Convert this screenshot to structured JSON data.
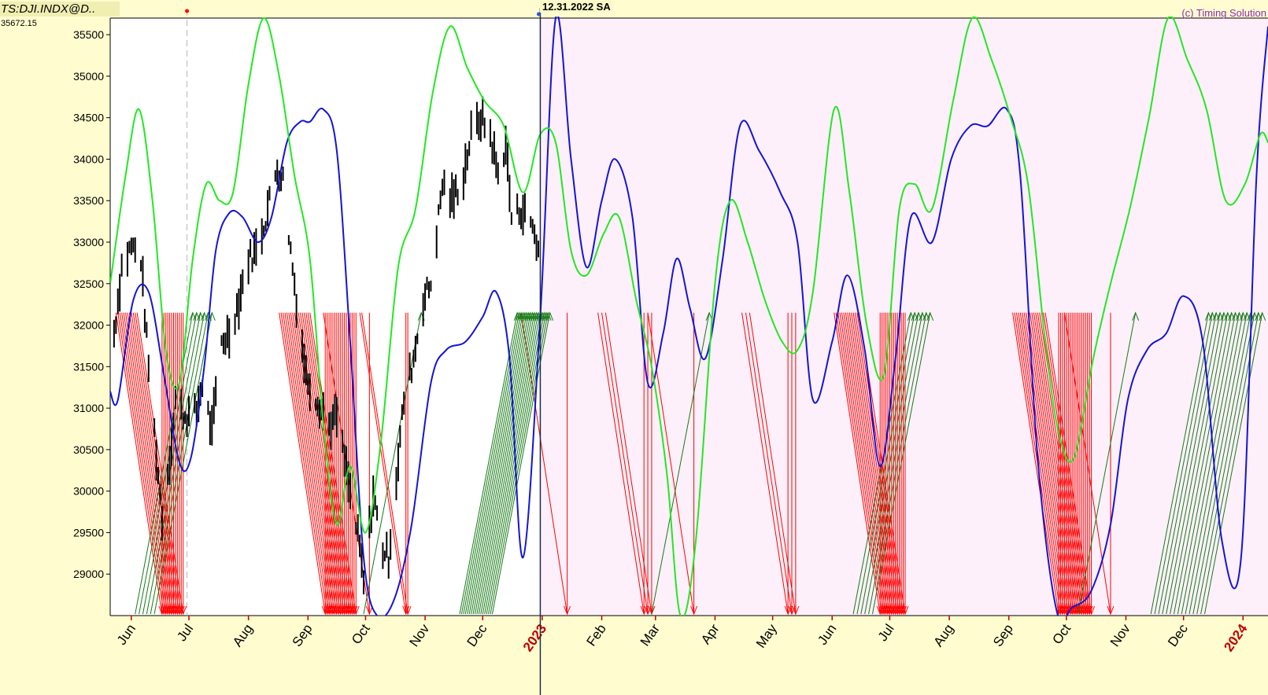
{
  "header": {
    "symbol": "TS:DJI.INDX@D..",
    "last_value": "35672.15",
    "cursor_date": "12.31.2022 SA",
    "credit": "(c) Timing Solution"
  },
  "colors": {
    "background": "#fffdcf",
    "plot_history": "#ffffff",
    "plot_forecast": "#fdf0fa",
    "price": "#000000",
    "blue_line": "#1414d8",
    "green_line": "#22e822",
    "red_arrows": "#ff0000",
    "green_arrows": "#167a16",
    "year_label": "#c00000"
  },
  "chart_data": {
    "type": "line",
    "ylim": [
      28500,
      35700
    ],
    "y_ticks": [
      29000,
      29500,
      30000,
      30500,
      31000,
      31500,
      32000,
      32500,
      33000,
      33500,
      34000,
      34500,
      35000,
      35500
    ],
    "x_labels": [
      "Jun",
      "Jul",
      "Aug",
      "Sep",
      "Oct",
      "Nov",
      "Dec",
      "2023",
      "Feb",
      "Mar",
      "Apr",
      "May",
      "Jun",
      "Jul",
      "Aug",
      "Sep",
      "Oct",
      "Nov",
      "Dec",
      "2024"
    ],
    "x_label_is_year": [
      false,
      false,
      false,
      false,
      false,
      false,
      false,
      true,
      false,
      false,
      false,
      false,
      false,
      false,
      false,
      false,
      false,
      false,
      false,
      true
    ],
    "x_label_dates": [
      "2022-06-01",
      "2022-07-01",
      "2022-08-01",
      "2022-09-01",
      "2022-10-01",
      "2022-11-01",
      "2022-12-01",
      "2023-01-01",
      "2023-02-01",
      "2023-03-01",
      "2023-04-01",
      "2023-05-01",
      "2023-06-01",
      "2023-07-01",
      "2023-08-01",
      "2023-09-01",
      "2023-10-01",
      "2023-11-01",
      "2023-12-01",
      "2024-01-01"
    ],
    "x_range": [
      "2022-05-21",
      "2024-01-14"
    ],
    "forecast_start": "2022-12-31",
    "cursor_marker": "2022-06-30",
    "price_series": {
      "name": "",
      "dates": [
        "2022-05-23",
        "2022-05-27",
        "2022-06-01",
        "2022-06-06",
        "2022-06-10",
        "2022-06-15",
        "2022-06-17",
        "2022-06-22",
        "2022-06-24",
        "2022-06-29",
        "2022-07-05",
        "2022-07-08",
        "2022-07-13",
        "2022-07-18",
        "2022-07-22",
        "2022-07-27",
        "2022-08-01",
        "2022-08-05",
        "2022-08-10",
        "2022-08-16",
        "2022-08-19",
        "2022-08-23",
        "2022-08-26",
        "2022-08-31",
        "2022-09-06",
        "2022-09-12",
        "2022-09-16",
        "2022-09-22",
        "2022-09-28",
        "2022-09-30",
        "2022-10-05",
        "2022-10-10",
        "2022-10-13",
        "2022-10-18",
        "2022-10-21",
        "2022-10-26",
        "2022-10-31",
        "2022-11-04",
        "2022-11-10",
        "2022-11-15",
        "2022-11-21",
        "2022-11-25",
        "2022-11-30",
        "2022-12-05",
        "2022-12-09",
        "2022-12-13",
        "2022-12-16",
        "2022-12-21",
        "2022-12-27",
        "2022-12-30"
      ],
      "values": [
        31900,
        32700,
        32950,
        32800,
        31500,
        30200,
        29700,
        30600,
        31100,
        30900,
        30950,
        31300,
        30700,
        31800,
        31900,
        32300,
        32800,
        32900,
        33300,
        33900,
        33750,
        32900,
        32300,
        31400,
        31100,
        30800,
        30900,
        30100,
        29300,
        28900,
        29950,
        29300,
        29200,
        30400,
        31100,
        31600,
        32300,
        32500,
        33700,
        33500,
        33800,
        34300,
        34500,
        34300,
        33800,
        34200,
        33300,
        33400,
        33200,
        32900
      ]
    },
    "series": [
      {
        "name": "",
        "color": "#1414d8",
        "dates": [
          "2022-05-21",
          "2022-05-25",
          "2022-06-02",
          "2022-06-10",
          "2022-06-18",
          "2022-06-26",
          "2022-07-02",
          "2022-07-09",
          "2022-07-15",
          "2022-07-22",
          "2022-07-29",
          "2022-08-06",
          "2022-08-13",
          "2022-08-21",
          "2022-08-28",
          "2022-09-02",
          "2022-09-09",
          "2022-09-16",
          "2022-09-23",
          "2022-09-30",
          "2022-10-07",
          "2022-10-16",
          "2022-10-25",
          "2022-11-04",
          "2022-11-12",
          "2022-11-22",
          "2022-12-01",
          "2022-12-08",
          "2022-12-15",
          "2022-12-22",
          "2022-12-31",
          "2023-01-08",
          "2023-01-16",
          "2023-01-24",
          "2023-02-01",
          "2023-02-08",
          "2023-02-17",
          "2023-02-25",
          "2023-03-05",
          "2023-03-12",
          "2023-03-19",
          "2023-03-27",
          "2023-04-05",
          "2023-04-14",
          "2023-04-24",
          "2023-05-05",
          "2023-05-14",
          "2023-05-22",
          "2023-06-01",
          "2023-06-09",
          "2023-06-18",
          "2023-06-26",
          "2023-07-04",
          "2023-07-12",
          "2023-07-23",
          "2023-08-02",
          "2023-08-12",
          "2023-08-21",
          "2023-08-31",
          "2023-09-07",
          "2023-09-16",
          "2023-09-26",
          "2023-10-04",
          "2023-10-14",
          "2023-10-24",
          "2023-11-02",
          "2023-11-12",
          "2023-11-22",
          "2023-12-01",
          "2023-12-11",
          "2023-12-21",
          "2023-12-31",
          "2024-01-08",
          "2024-01-14"
        ],
        "values": [
          31200,
          31100,
          32300,
          32400,
          31400,
          30350,
          30400,
          31500,
          32900,
          33350,
          33300,
          33000,
          33300,
          34200,
          34450,
          34450,
          34600,
          34100,
          31800,
          29200,
          28500,
          28700,
          29600,
          31300,
          31700,
          31800,
          32100,
          32400,
          31600,
          29200,
          32100,
          35700,
          34000,
          32700,
          33500,
          34000,
          33300,
          31300,
          31900,
          32800,
          32200,
          31600,
          32800,
          34400,
          34100,
          33600,
          33000,
          31100,
          31800,
          32600,
          31700,
          30300,
          31600,
          33300,
          33000,
          34000,
          34400,
          34400,
          34600,
          33800,
          30400,
          28550,
          28600,
          28800,
          29600,
          31100,
          31700,
          31900,
          32350,
          31800,
          29400,
          29200,
          33800,
          35600
        ]
      },
      {
        "name": "",
        "color": "#22e822",
        "dates": [
          "2022-05-21",
          "2022-05-29",
          "2022-06-05",
          "2022-06-12",
          "2022-06-19",
          "2022-06-26",
          "2022-07-03",
          "2022-07-10",
          "2022-07-17",
          "2022-07-24",
          "2022-08-01",
          "2022-08-09",
          "2022-08-17",
          "2022-08-25",
          "2022-09-02",
          "2022-09-09",
          "2022-09-16",
          "2022-09-23",
          "2022-10-01",
          "2022-10-09",
          "2022-10-18",
          "2022-10-27",
          "2022-11-05",
          "2022-11-14",
          "2022-11-23",
          "2022-12-02",
          "2022-12-12",
          "2022-12-22",
          "2022-12-31",
          "2023-01-08",
          "2023-01-16",
          "2023-01-24",
          "2023-02-02",
          "2023-02-10",
          "2023-02-19",
          "2023-02-27",
          "2023-03-07",
          "2023-03-14",
          "2023-03-22",
          "2023-04-01",
          "2023-04-09",
          "2023-04-18",
          "2023-04-27",
          "2023-05-06",
          "2023-05-14",
          "2023-05-22",
          "2023-06-02",
          "2023-06-10",
          "2023-06-19",
          "2023-06-28",
          "2023-07-06",
          "2023-07-14",
          "2023-07-23",
          "2023-08-03",
          "2023-08-13",
          "2023-08-23",
          "2023-09-02",
          "2023-09-11",
          "2023-09-20",
          "2023-09-27",
          "2023-10-05",
          "2023-10-15",
          "2023-10-24",
          "2023-11-03",
          "2023-11-13",
          "2023-11-23",
          "2023-12-03",
          "2023-12-13",
          "2023-12-23",
          "2024-01-02",
          "2024-01-10",
          "2024-01-14"
        ],
        "values": [
          32500,
          33800,
          34600,
          33500,
          31700,
          31300,
          32800,
          33700,
          33500,
          33600,
          34900,
          35700,
          35000,
          33800,
          32800,
          30800,
          29600,
          30300,
          29500,
          30600,
          32700,
          33400,
          34800,
          35600,
          35100,
          34700,
          34400,
          33600,
          34300,
          34200,
          32900,
          32600,
          33100,
          33300,
          32300,
          31500,
          30200,
          28500,
          29400,
          32500,
          33500,
          33000,
          32300,
          31800,
          31700,
          32400,
          34600,
          33600,
          32000,
          31400,
          33400,
          33700,
          33400,
          34700,
          35700,
          35200,
          34500,
          33700,
          31800,
          30700,
          30400,
          31600,
          32500,
          33400,
          34500,
          35700,
          35200,
          34600,
          33500,
          33700,
          34300,
          34200
        ]
      }
    ],
    "red_arrow_dates": [
      "2022-06-17",
      "2022-06-18",
      "2022-06-19",
      "2022-06-20",
      "2022-06-21",
      "2022-06-22",
      "2022-06-23",
      "2022-06-24",
      "2022-06-25",
      "2022-06-26",
      "2022-06-27",
      "2022-06-28",
      "2022-09-10",
      "2022-09-11",
      "2022-09-12",
      "2022-09-13",
      "2022-09-14",
      "2022-09-15",
      "2022-09-16",
      "2022-09-17",
      "2022-09-18",
      "2022-09-19",
      "2022-09-20",
      "2022-09-21",
      "2022-09-22",
      "2022-09-23",
      "2022-09-24",
      "2022-09-25",
      "2022-09-26",
      "2022-10-03",
      "2022-10-22",
      "2022-10-23",
      "2023-01-14",
      "2023-02-23",
      "2023-02-25",
      "2023-02-27",
      "2023-03-21",
      "2023-05-09",
      "2023-05-11",
      "2023-05-13",
      "2023-06-26",
      "2023-06-27",
      "2023-06-28",
      "2023-06-29",
      "2023-06-30",
      "2023-07-01",
      "2023-07-02",
      "2023-07-03",
      "2023-07-04",
      "2023-07-05",
      "2023-07-06",
      "2023-07-07",
      "2023-07-08",
      "2023-07-09",
      "2023-09-27",
      "2023-09-28",
      "2023-09-29",
      "2023-09-30",
      "2023-10-01",
      "2023-10-02",
      "2023-10-03",
      "2023-10-04",
      "2023-10-05",
      "2023-10-06",
      "2023-10-07",
      "2023-10-08",
      "2023-10-09",
      "2023-10-10",
      "2023-10-11",
      "2023-10-12",
      "2023-10-13",
      "2023-10-14",
      "2023-10-24"
    ],
    "green_arrow_dates": [
      "2022-07-03",
      "2022-07-05",
      "2022-07-07",
      "2022-07-09",
      "2022-07-11",
      "2022-07-13",
      "2022-10-30",
      "2022-12-19",
      "2022-12-20",
      "2022-12-21",
      "2022-12-22",
      "2022-12-23",
      "2022-12-24",
      "2022-12-25",
      "2022-12-26",
      "2022-12-27",
      "2022-12-28",
      "2022-12-29",
      "2022-12-30",
      "2022-12-31",
      "2023-01-01",
      "2023-01-02",
      "2023-01-03",
      "2023-01-04",
      "2023-01-05",
      "2023-03-29",
      "2023-07-12",
      "2023-07-14",
      "2023-07-16",
      "2023-07-18",
      "2023-07-20",
      "2023-07-22",
      "2023-11-06",
      "2023-12-14",
      "2023-12-16",
      "2023-12-18",
      "2023-12-20",
      "2023-12-22",
      "2023-12-24",
      "2023-12-26",
      "2023-12-28",
      "2023-12-30",
      "2024-01-01",
      "2024-01-03",
      "2024-01-05",
      "2024-01-07",
      "2024-01-09",
      "2024-01-11"
    ],
    "arrow_level": 32150
  }
}
